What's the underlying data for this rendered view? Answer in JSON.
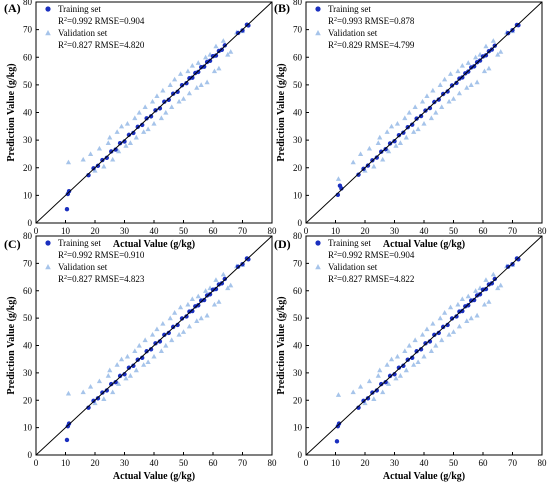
{
  "figure": {
    "background": "#ffffff"
  },
  "chart_data": [
    {
      "type": "scatter",
      "panel_label": "(A)",
      "xlabel": "Actual Value (g/kg)",
      "ylabel": "Prediction Value (g/kg)",
      "xlim": [
        0,
        80
      ],
      "ylim": [
        0,
        80
      ],
      "ticks": [
        0,
        10,
        20,
        30,
        40,
        50,
        60,
        70,
        80
      ],
      "tick_labels": [
        "0",
        "10",
        "20",
        "30",
        "40",
        "50",
        "60",
        "70",
        "80"
      ],
      "grid": false,
      "legend_position": "top-left",
      "reference_line": {
        "slope": 1,
        "intercept": 0,
        "color": "#000000"
      },
      "legend": {
        "training_label": "Training set",
        "training_stats": {
          "r2_prefix": "R",
          "r2_sup": "2",
          "r2_suffix": "=0.992 RMSE=0.904"
        },
        "validation_label": "Validation set",
        "validation_stats": {
          "r2_prefix": "R",
          "r2_sup": "2",
          "r2_suffix": "=0.827 RMSE=4.820"
        }
      },
      "series": [
        {
          "name": "Training set",
          "marker": "circle",
          "color": "#1a2fbf",
          "x": [
            10.8,
            11.2,
            10.5,
            17.8,
            19.5,
            21.0,
            22.5,
            24.0,
            25.5,
            27.0,
            28.5,
            30.0,
            31.5,
            33.0,
            34.5,
            36.0,
            37.5,
            39.0,
            40.5,
            42.0,
            43.5,
            45.0,
            46.5,
            48.0,
            49.5,
            51.0,
            52.0,
            53.0,
            54.0,
            55.0,
            56.0,
            57.0,
            58.0,
            59.0,
            60.0,
            61.0,
            62.0,
            63.0,
            64.0,
            68.5,
            70.0,
            71.5,
            72.0
          ],
          "y": [
            10.5,
            11.5,
            5.0,
            17.3,
            19.8,
            20.7,
            22.8,
            23.6,
            25.9,
            26.6,
            28.9,
            29.5,
            31.9,
            32.6,
            34.8,
            35.5,
            37.9,
            38.6,
            40.8,
            41.5,
            43.9,
            44.6,
            46.8,
            47.5,
            49.9,
            50.6,
            52.4,
            52.6,
            54.3,
            54.7,
            56.4,
            56.6,
            58.3,
            58.7,
            60.4,
            60.6,
            62.3,
            62.7,
            64.3,
            68.8,
            69.7,
            71.8,
            71.5
          ]
        },
        {
          "name": "Validation set",
          "marker": "triangle",
          "color": "#a6c4ea",
          "x": [
            11.0,
            16.0,
            18.5,
            20.0,
            21.5,
            23.0,
            24.5,
            25.0,
            26.0,
            27.5,
            28.0,
            29.0,
            30.5,
            31.0,
            32.0,
            33.5,
            34.0,
            35.0,
            36.5,
            37.0,
            38.0,
            39.5,
            40.0,
            41.0,
            42.5,
            43.0,
            44.0,
            45.5,
            46.0,
            47.0,
            48.5,
            49.0,
            50.0,
            51.5,
            52.0,
            53.0,
            54.5,
            55.0,
            56.0,
            57.5,
            58.0,
            59.0,
            60.5,
            61.0,
            62.0,
            63.5,
            65.0,
            66.0,
            68.0,
            70.0
          ],
          "y": [
            22.0,
            23.0,
            25.0,
            19.0,
            27.0,
            20.5,
            29.0,
            31.0,
            23.0,
            33.0,
            26.0,
            35.0,
            28.0,
            36.0,
            29.0,
            38.0,
            31.0,
            40.0,
            33.0,
            42.0,
            34.0,
            44.0,
            36.0,
            46.0,
            38.0,
            48.0,
            40.0,
            50.0,
            42.0,
            52.0,
            44.0,
            54.0,
            45.0,
            55.0,
            47.0,
            57.0,
            49.0,
            58.0,
            50.0,
            60.0,
            51.0,
            61.0,
            55.0,
            64.0,
            56.0,
            66.0,
            61.0,
            62.0,
            69.0,
            69.5
          ]
        }
      ]
    },
    {
      "type": "scatter",
      "panel_label": "(B)",
      "xlabel": "Actual Value (g/kg)",
      "ylabel": "Prediction Value (g/kg)",
      "xlim": [
        0,
        80
      ],
      "ylim": [
        0,
        80
      ],
      "ticks": [
        0,
        10,
        20,
        30,
        40,
        50,
        60,
        70,
        80
      ],
      "tick_labels": [
        "0",
        "10",
        "20",
        "30",
        "40",
        "50",
        "60",
        "70",
        "80"
      ],
      "grid": false,
      "legend_position": "top-left",
      "reference_line": {
        "slope": 1,
        "intercept": 0,
        "color": "#000000"
      },
      "legend": {
        "training_label": "Training set",
        "training_stats": {
          "r2_prefix": "R",
          "r2_sup": "2",
          "r2_suffix": "=0.993 RMSE=0.878"
        },
        "validation_label": "Validation set",
        "validation_stats": {
          "r2_prefix": "R",
          "r2_sup": "2",
          "r2_suffix": "=0.829 RMSE=4.799"
        }
      },
      "series": [
        {
          "name": "Training set",
          "marker": "circle",
          "color": "#1a2fbf",
          "x": [
            10.8,
            11.5,
            12.0,
            17.8,
            19.5,
            21.0,
            22.5,
            24.0,
            25.5,
            27.0,
            28.5,
            30.0,
            31.5,
            33.0,
            34.5,
            36.0,
            37.5,
            39.0,
            40.5,
            42.0,
            43.5,
            45.0,
            46.5,
            48.0,
            49.5,
            51.0,
            52.0,
            53.0,
            54.0,
            55.0,
            56.0,
            57.0,
            58.0,
            59.0,
            60.0,
            61.0,
            62.0,
            63.0,
            64.0,
            68.5,
            70.0,
            71.5,
            72.0
          ],
          "y": [
            10.2,
            13.5,
            12.5,
            17.5,
            19.6,
            20.8,
            22.7,
            23.7,
            25.8,
            26.7,
            28.8,
            29.6,
            31.8,
            32.7,
            34.7,
            35.6,
            37.8,
            38.7,
            40.7,
            41.6,
            43.8,
            44.7,
            46.7,
            47.6,
            49.8,
            50.7,
            52.3,
            52.7,
            54.2,
            54.8,
            56.3,
            56.7,
            58.2,
            58.8,
            60.3,
            60.7,
            62.2,
            62.8,
            64.2,
            68.7,
            69.8,
            71.7,
            71.6
          ]
        },
        {
          "name": "Validation set",
          "marker": "triangle",
          "color": "#a6c4ea",
          "x": [
            11.0,
            16.0,
            18.5,
            20.0,
            21.5,
            23.0,
            24.5,
            25.0,
            26.0,
            27.5,
            28.0,
            29.0,
            30.5,
            31.0,
            32.0,
            33.5,
            34.0,
            35.0,
            36.5,
            37.0,
            38.0,
            39.5,
            40.0,
            41.0,
            42.5,
            43.0,
            44.0,
            45.5,
            46.0,
            47.0,
            48.5,
            49.0,
            50.0,
            51.5,
            52.0,
            53.0,
            54.5,
            55.0,
            56.0,
            57.5,
            58.0,
            59.0,
            60.5,
            61.0,
            62.0,
            63.5,
            65.0,
            66.0,
            68.0,
            70.0
          ],
          "y": [
            16.0,
            22.0,
            25.0,
            19.0,
            27.0,
            20.5,
            29.0,
            31.0,
            23.0,
            33.0,
            26.0,
            35.0,
            28.0,
            36.0,
            29.0,
            38.0,
            31.0,
            40.0,
            33.0,
            42.0,
            34.0,
            44.0,
            36.0,
            46.0,
            38.0,
            48.0,
            40.0,
            50.0,
            42.0,
            52.0,
            44.0,
            54.0,
            45.0,
            55.0,
            47.0,
            57.0,
            49.0,
            58.0,
            50.0,
            60.0,
            51.0,
            61.0,
            55.0,
            64.0,
            56.0,
            66.0,
            61.0,
            62.0,
            69.0,
            69.5
          ]
        }
      ]
    },
    {
      "type": "scatter",
      "panel_label": "(C)",
      "xlabel": "Actual Value (g/kg)",
      "ylabel": "Prediction Value (g/kg)",
      "xlim": [
        0,
        80
      ],
      "ylim": [
        0,
        80
      ],
      "ticks": [
        0,
        10,
        20,
        30,
        40,
        50,
        60,
        70,
        80
      ],
      "tick_labels": [
        "0",
        "10",
        "20",
        "30",
        "40",
        "50",
        "60",
        "70",
        "80"
      ],
      "grid": false,
      "legend_position": "top-left",
      "reference_line": {
        "slope": 1,
        "intercept": 0,
        "color": "#000000"
      },
      "legend": {
        "training_label": "Training set",
        "training_stats": {
          "r2_prefix": "R",
          "r2_sup": "2",
          "r2_suffix": "=0.992 RMSE=0.910"
        },
        "validation_label": "Validation set",
        "validation_stats": {
          "r2_prefix": "R",
          "r2_sup": "2",
          "r2_suffix": "=0.827 RMSE=4.823"
        }
      },
      "series": [
        {
          "name": "Training set",
          "marker": "circle",
          "color": "#1a2fbf",
          "x": [
            10.8,
            11.2,
            10.5,
            17.8,
            19.5,
            21.0,
            22.5,
            24.0,
            25.5,
            27.0,
            28.5,
            30.0,
            31.5,
            33.0,
            34.5,
            36.0,
            37.5,
            39.0,
            40.5,
            42.0,
            43.5,
            45.0,
            46.5,
            48.0,
            49.5,
            51.0,
            52.0,
            53.0,
            54.0,
            55.0,
            56.0,
            57.0,
            58.0,
            59.0,
            60.0,
            61.0,
            62.0,
            63.0,
            64.0,
            68.5,
            70.0,
            71.5,
            72.0
          ],
          "y": [
            10.5,
            11.5,
            5.5,
            17.3,
            19.8,
            20.7,
            22.8,
            23.6,
            25.9,
            26.6,
            28.9,
            29.5,
            31.9,
            32.6,
            34.8,
            35.5,
            37.9,
            38.6,
            40.8,
            41.5,
            43.9,
            44.6,
            46.8,
            47.5,
            49.9,
            50.6,
            52.4,
            52.6,
            54.3,
            54.7,
            56.4,
            56.6,
            58.3,
            58.7,
            60.4,
            60.6,
            62.3,
            62.7,
            64.3,
            68.8,
            69.7,
            71.8,
            71.5
          ]
        },
        {
          "name": "Validation set",
          "marker": "triangle",
          "color": "#a6c4ea",
          "x": [
            11.0,
            16.0,
            18.5,
            20.0,
            21.5,
            23.0,
            24.5,
            25.0,
            26.0,
            27.5,
            28.0,
            29.0,
            30.5,
            31.0,
            32.0,
            33.5,
            34.0,
            35.0,
            36.5,
            37.0,
            38.0,
            39.5,
            40.0,
            41.0,
            42.5,
            43.0,
            44.0,
            45.5,
            46.0,
            47.0,
            48.5,
            49.0,
            50.0,
            51.5,
            52.0,
            53.0,
            54.5,
            55.0,
            56.0,
            57.5,
            58.0,
            59.0,
            60.5,
            61.0,
            62.0,
            63.5,
            65.0,
            66.0,
            68.0,
            70.0
          ],
          "y": [
            22.5,
            23.0,
            25.0,
            19.0,
            27.0,
            20.5,
            29.0,
            31.0,
            23.0,
            33.0,
            26.0,
            35.0,
            28.0,
            36.0,
            29.0,
            38.0,
            31.0,
            40.0,
            33.0,
            42.0,
            34.0,
            44.0,
            36.0,
            46.0,
            38.0,
            48.0,
            40.0,
            50.0,
            42.0,
            52.0,
            44.0,
            54.0,
            45.0,
            55.0,
            47.0,
            57.0,
            49.0,
            58.0,
            50.0,
            60.0,
            51.0,
            61.0,
            55.0,
            64.0,
            56.0,
            66.0,
            61.0,
            62.0,
            69.0,
            69.5
          ]
        }
      ]
    },
    {
      "type": "scatter",
      "panel_label": "(D)",
      "xlabel": "Actual Value (g/kg)",
      "ylabel": "Prediction Value (g/kg)",
      "xlim": [
        0,
        80
      ],
      "ylim": [
        0,
        80
      ],
      "ticks": [
        0,
        10,
        20,
        30,
        40,
        50,
        60,
        70,
        80
      ],
      "tick_labels": [
        "0",
        "10",
        "20",
        "30",
        "40",
        "50",
        "60",
        "70",
        "80"
      ],
      "grid": false,
      "legend_position": "top-left",
      "reference_line": {
        "slope": 1,
        "intercept": 0,
        "color": "#000000"
      },
      "legend": {
        "training_label": "Training set",
        "training_stats": {
          "r2_prefix": "R",
          "r2_sup": "2",
          "r2_suffix": "=0.992 RMSE=0.904"
        },
        "validation_label": "Validation set",
        "validation_stats": {
          "r2_prefix": "R",
          "r2_sup": "2",
          "r2_suffix": "=0.827 RMSE=4.822"
        }
      },
      "series": [
        {
          "name": "Training set",
          "marker": "circle",
          "color": "#1a2fbf",
          "x": [
            10.8,
            11.2,
            10.5,
            17.8,
            19.5,
            21.0,
            22.5,
            24.0,
            25.5,
            27.0,
            28.5,
            30.0,
            31.5,
            33.0,
            34.5,
            36.0,
            37.5,
            39.0,
            40.5,
            42.0,
            43.5,
            45.0,
            46.5,
            48.0,
            49.5,
            51.0,
            52.0,
            53.0,
            54.0,
            55.0,
            56.0,
            57.0,
            58.0,
            59.0,
            60.0,
            61.0,
            62.0,
            63.0,
            64.0,
            68.5,
            70.0,
            71.5,
            72.0
          ],
          "y": [
            10.5,
            11.5,
            5.0,
            17.3,
            19.8,
            20.7,
            22.8,
            23.6,
            25.9,
            26.6,
            28.9,
            29.5,
            31.9,
            32.6,
            34.8,
            35.5,
            37.9,
            38.6,
            40.8,
            41.5,
            43.9,
            44.6,
            46.8,
            47.5,
            49.9,
            50.6,
            52.4,
            52.6,
            54.3,
            54.7,
            56.4,
            56.6,
            58.3,
            58.7,
            60.4,
            60.6,
            62.3,
            62.7,
            64.3,
            68.8,
            69.7,
            71.8,
            71.5
          ]
        },
        {
          "name": "Validation set",
          "marker": "triangle",
          "color": "#a6c4ea",
          "x": [
            11.0,
            16.0,
            18.5,
            20.0,
            21.5,
            23.0,
            24.5,
            25.0,
            26.0,
            27.5,
            28.0,
            29.0,
            30.5,
            31.0,
            32.0,
            33.5,
            34.0,
            35.0,
            36.5,
            37.0,
            38.0,
            39.5,
            40.0,
            41.0,
            42.5,
            43.0,
            44.0,
            45.5,
            46.0,
            47.0,
            48.5,
            49.0,
            50.0,
            51.5,
            52.0,
            53.0,
            54.5,
            55.0,
            56.0,
            57.5,
            58.0,
            59.0,
            60.5,
            61.0,
            62.0,
            63.5,
            65.0,
            66.0,
            68.0,
            70.0
          ],
          "y": [
            22.0,
            23.0,
            25.0,
            19.0,
            27.0,
            20.5,
            29.0,
            31.0,
            23.0,
            33.0,
            26.0,
            35.0,
            28.0,
            36.0,
            29.0,
            38.0,
            31.0,
            40.0,
            33.0,
            42.0,
            34.0,
            44.0,
            36.0,
            46.0,
            38.0,
            48.0,
            40.0,
            50.0,
            42.0,
            52.0,
            44.0,
            54.0,
            45.0,
            55.0,
            47.0,
            57.0,
            49.0,
            58.0,
            50.0,
            60.0,
            51.0,
            61.0,
            55.0,
            64.0,
            56.0,
            66.0,
            61.0,
            62.0,
            69.0,
            69.5
          ]
        }
      ]
    }
  ]
}
